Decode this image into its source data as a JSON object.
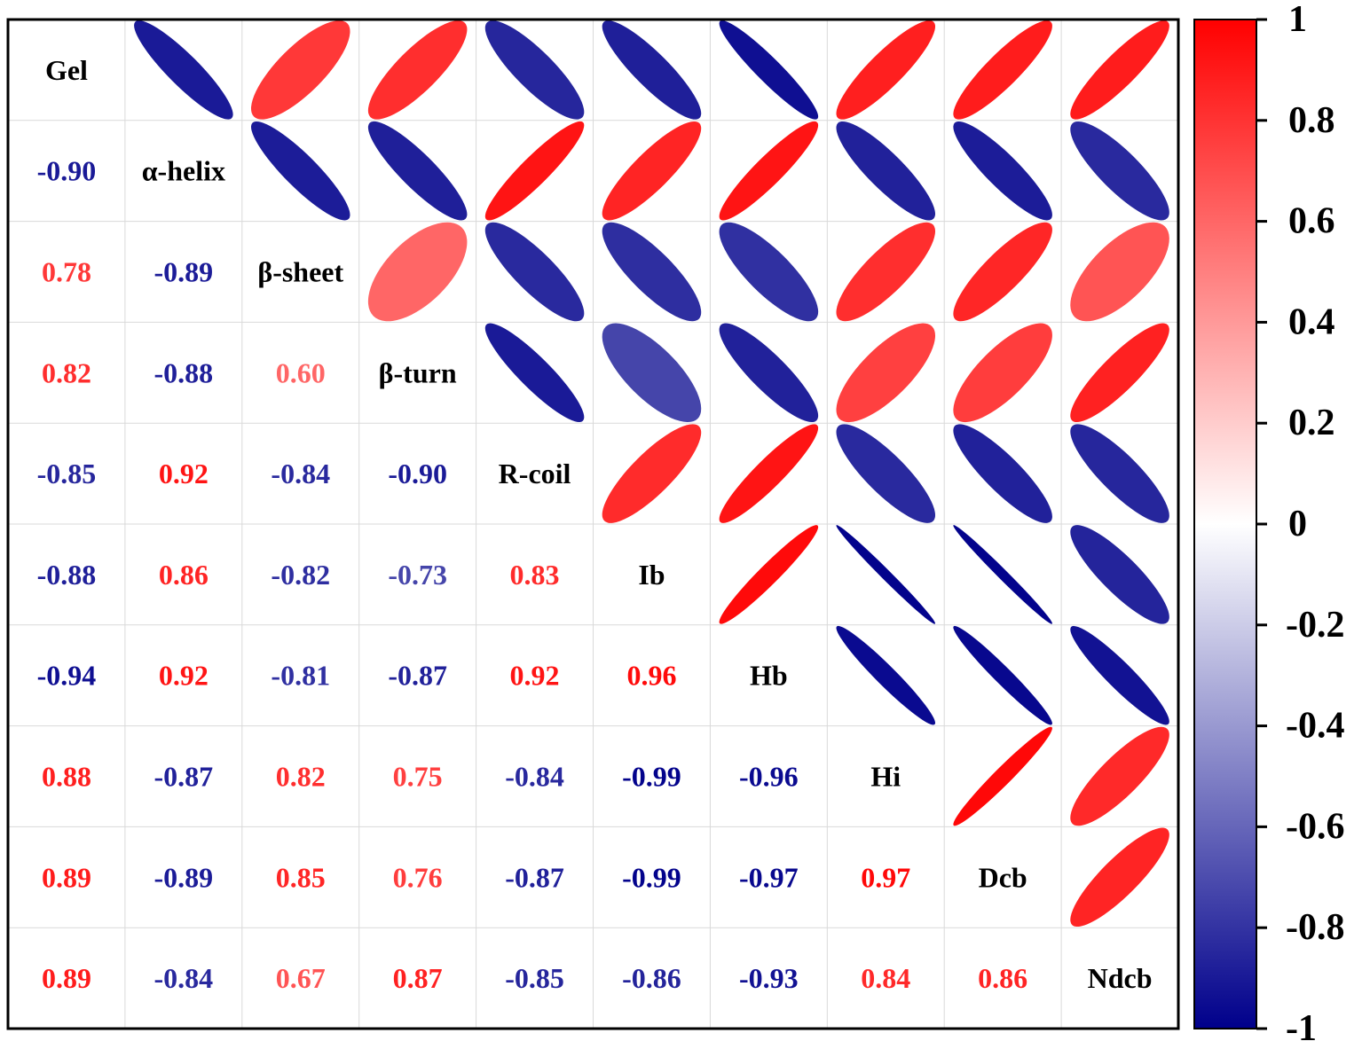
{
  "chart_data": {
    "type": "heatmap",
    "variables": [
      "Gel",
      "α-helix",
      "β-sheet",
      "β-turn",
      "R-coil",
      "Ib",
      "Hb",
      "Hi",
      "Dcb",
      "Ndcb"
    ],
    "matrix": [
      [
        1.0,
        -0.9,
        0.78,
        0.82,
        -0.85,
        -0.88,
        -0.94,
        0.88,
        0.89,
        0.89
      ],
      [
        -0.9,
        1.0,
        -0.89,
        -0.88,
        0.92,
        0.86,
        0.92,
        -0.87,
        -0.89,
        -0.84
      ],
      [
        0.78,
        -0.89,
        1.0,
        0.6,
        -0.84,
        -0.82,
        -0.81,
        0.82,
        0.85,
        0.67
      ],
      [
        0.82,
        -0.88,
        0.6,
        1.0,
        -0.9,
        -0.73,
        -0.87,
        0.75,
        0.76,
        0.87
      ],
      [
        -0.85,
        0.92,
        -0.84,
        -0.9,
        1.0,
        0.83,
        0.92,
        -0.84,
        -0.87,
        -0.85
      ],
      [
        -0.88,
        0.86,
        -0.82,
        -0.73,
        0.83,
        1.0,
        0.96,
        -0.99,
        -0.99,
        -0.86
      ],
      [
        -0.94,
        0.92,
        -0.81,
        -0.87,
        0.92,
        0.96,
        1.0,
        -0.96,
        -0.97,
        -0.93
      ],
      [
        0.88,
        -0.87,
        0.82,
        0.75,
        -0.84,
        -0.99,
        -0.96,
        1.0,
        0.97,
        0.84
      ],
      [
        0.89,
        -0.89,
        0.85,
        0.76,
        -0.87,
        -0.99,
        -0.97,
        0.97,
        1.0,
        0.86
      ],
      [
        0.89,
        -0.84,
        0.67,
        0.87,
        -0.85,
        -0.86,
        -0.93,
        0.84,
        0.86,
        1.0
      ]
    ],
    "lower_triangle": "numbers",
    "upper_triangle": "ellipses",
    "colorbar": {
      "range": [
        -1,
        1
      ],
      "ticks": [
        "1",
        "0.8",
        "0.6",
        "0.4",
        "0.2",
        "0",
        "-0.2",
        "-0.4",
        "-0.6",
        "-0.8",
        "-1"
      ],
      "colors": {
        "high": "#ff0000",
        "mid": "#ffffff",
        "low": "#00008b"
      },
      "placement": "right"
    },
    "grid": true
  }
}
